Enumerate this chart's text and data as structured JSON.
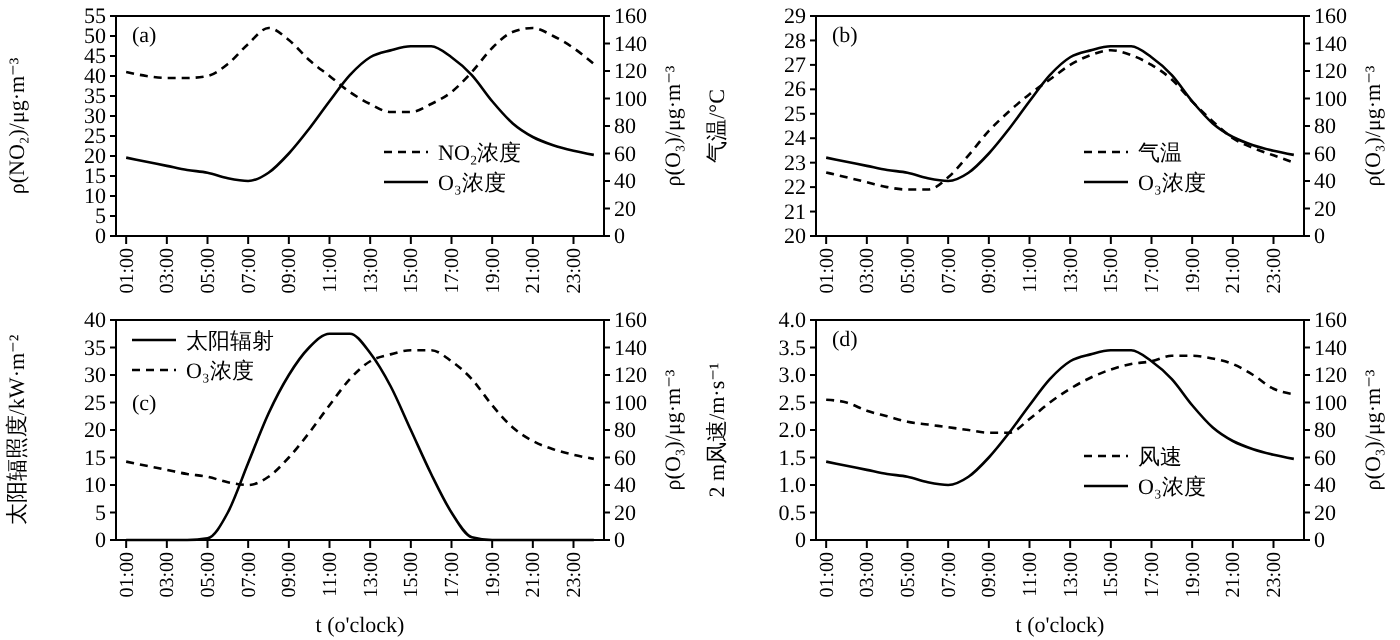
{
  "chart_data": [
    {
      "type": "line",
      "annotations": [
        "(a)"
      ],
      "ylabel": "ρ(NO₂)/μg·m⁻³",
      "y2label": "ρ(O₃)/μg·m⁻³",
      "legend": "bottom right",
      "grid": false,
      "marker": "none",
      "xlim": [
        0.5,
        24.5
      ],
      "xticks": [
        {
          "value": 1,
          "label": "01:00"
        },
        {
          "value": 3,
          "label": "03:00"
        },
        {
          "value": 5,
          "label": "05:00"
        },
        {
          "value": 7,
          "label": "07:00"
        },
        {
          "value": 9,
          "label": "09:00"
        },
        {
          "value": 11,
          "label": "11:00"
        },
        {
          "value": 13,
          "label": "13:00"
        },
        {
          "value": 15,
          "label": "15:00"
        },
        {
          "value": 17,
          "label": "17:00"
        },
        {
          "value": 19,
          "label": "19:00"
        },
        {
          "value": 21,
          "label": "21:00"
        },
        {
          "value": 23,
          "label": "23:00"
        }
      ],
      "ylim": [
        0,
        55
      ],
      "yticks": [
        0,
        5,
        10,
        15,
        20,
        25,
        30,
        35,
        40,
        45,
        50,
        55
      ],
      "y2lim": [
        0,
        160
      ],
      "y2ticks": [
        0,
        20,
        40,
        60,
        80,
        100,
        120,
        140,
        160
      ],
      "x": [
        1,
        2,
        3,
        4,
        5,
        6,
        7,
        8,
        9,
        10,
        11,
        12,
        13,
        14,
        15,
        16,
        17,
        18,
        19,
        20,
        21,
        22,
        23,
        24
      ],
      "series": [
        {
          "name": "NO₂浓度",
          "color": "#000000",
          "line_style": "dashed",
          "values": [
            41,
            40,
            39.5,
            39.5,
            40,
            43,
            48,
            52,
            49,
            44,
            40,
            36,
            33,
            31,
            31,
            33,
            36,
            41,
            47,
            51,
            52,
            50,
            47,
            43
          ]
        },
        {
          "name": "O₃浓度",
          "color": "#000000",
          "line_style": "solid",
          "axis": "y2",
          "values": [
            57,
            54,
            51,
            48,
            46,
            42,
            40,
            46,
            60,
            78,
            98,
            117,
            130,
            135,
            138,
            138,
            130,
            117,
            98,
            82,
            72,
            66,
            62,
            59
          ]
        }
      ]
    },
    {
      "type": "line",
      "annotations": [
        "(b)"
      ],
      "ylabel": "气温/°C",
      "y2label": "ρ(O₃)/μg·m⁻³",
      "legend": "bottom right",
      "grid": false,
      "marker": "none",
      "xlim": [
        0.5,
        24.5
      ],
      "xticks": [
        {
          "value": 1,
          "label": "01:00"
        },
        {
          "value": 3,
          "label": "03:00"
        },
        {
          "value": 5,
          "label": "05:00"
        },
        {
          "value": 7,
          "label": "07:00"
        },
        {
          "value": 9,
          "label": "09:00"
        },
        {
          "value": 11,
          "label": "11:00"
        },
        {
          "value": 13,
          "label": "13:00"
        },
        {
          "value": 15,
          "label": "15:00"
        },
        {
          "value": 17,
          "label": "17:00"
        },
        {
          "value": 19,
          "label": "19:00"
        },
        {
          "value": 21,
          "label": "21:00"
        },
        {
          "value": 23,
          "label": "23:00"
        }
      ],
      "ylim": [
        20,
        29
      ],
      "yticks": [
        20,
        21,
        22,
        23,
        24,
        25,
        26,
        27,
        28,
        29
      ],
      "y2lim": [
        0,
        160
      ],
      "y2ticks": [
        0,
        20,
        40,
        60,
        80,
        100,
        120,
        140,
        160
      ],
      "x": [
        1,
        2,
        3,
        4,
        5,
        6,
        7,
        8,
        9,
        10,
        11,
        12,
        13,
        14,
        15,
        16,
        17,
        18,
        19,
        20,
        21,
        22,
        23,
        24
      ],
      "series": [
        {
          "name": "气温",
          "color": "#000000",
          "line_style": "dashed",
          "values": [
            22.6,
            22.4,
            22.2,
            22,
            21.9,
            21.9,
            22.4,
            23.3,
            24.3,
            25.1,
            25.8,
            26.4,
            27,
            27.4,
            27.6,
            27.4,
            27,
            26.4,
            25.5,
            24.7,
            24,
            23.6,
            23.3,
            23
          ]
        },
        {
          "name": "O₃浓度",
          "color": "#000000",
          "line_style": "solid",
          "axis": "y2",
          "values": [
            57,
            54,
            51,
            48,
            46,
            42,
            40,
            46,
            60,
            78,
            98,
            117,
            130,
            135,
            138,
            138,
            130,
            117,
            98,
            82,
            72,
            66,
            62,
            59
          ]
        }
      ]
    },
    {
      "type": "line",
      "annotations": [
        "(c)"
      ],
      "xlabel": "t (o'clock)",
      "ylabel": "太阳辐照度/kW·m⁻²",
      "y2label": "ρ(O₃)/μg·m⁻³",
      "legend": "top left",
      "grid": false,
      "marker": "none",
      "xlim": [
        0.5,
        24.5
      ],
      "xticks": [
        {
          "value": 1,
          "label": "01:00"
        },
        {
          "value": 3,
          "label": "03:00"
        },
        {
          "value": 5,
          "label": "05:00"
        },
        {
          "value": 7,
          "label": "07:00"
        },
        {
          "value": 9,
          "label": "09:00"
        },
        {
          "value": 11,
          "label": "11:00"
        },
        {
          "value": 13,
          "label": "13:00"
        },
        {
          "value": 15,
          "label": "15:00"
        },
        {
          "value": 17,
          "label": "17:00"
        },
        {
          "value": 19,
          "label": "19:00"
        },
        {
          "value": 21,
          "label": "21:00"
        },
        {
          "value": 23,
          "label": "23:00"
        }
      ],
      "ylim": [
        0,
        40
      ],
      "yticks": [
        0,
        5,
        10,
        15,
        20,
        25,
        30,
        35,
        40
      ],
      "y2lim": [
        0,
        160
      ],
      "y2ticks": [
        0,
        20,
        40,
        60,
        80,
        100,
        120,
        140,
        160
      ],
      "x": [
        1,
        2,
        3,
        4,
        5,
        6,
        7,
        8,
        9,
        10,
        11,
        12,
        13,
        14,
        15,
        16,
        17,
        18,
        19,
        20,
        21,
        22,
        23,
        24
      ],
      "series": [
        {
          "name": "太阳辐射",
          "color": "#000000",
          "line_style": "solid",
          "values": [
            0,
            0,
            0,
            0,
            0.3,
            5,
            14,
            23,
            30,
            35,
            37.5,
            37.5,
            34,
            28,
            20,
            12,
            5,
            0.5,
            0,
            0,
            0,
            0,
            0,
            0
          ]
        },
        {
          "name": "O₃浓度",
          "color": "#000000",
          "line_style": "dashed",
          "axis": "y2",
          "values": [
            57,
            54,
            51,
            48,
            46,
            42,
            40,
            46,
            60,
            78,
            98,
            117,
            130,
            135,
            138,
            138,
            130,
            117,
            98,
            82,
            72,
            66,
            62,
            59
          ]
        }
      ]
    },
    {
      "type": "line",
      "annotations": [
        "(d)"
      ],
      "xlabel": "t (o'clock)",
      "ylabel": "2 m风速/m·s⁻¹",
      "y2label": "ρ(O₃)/μg·m⁻³",
      "legend": "bottom right",
      "grid": false,
      "marker": "none",
      "xlim": [
        0.5,
        24.5
      ],
      "xticks": [
        {
          "value": 1,
          "label": "01:00"
        },
        {
          "value": 3,
          "label": "03:00"
        },
        {
          "value": 5,
          "label": "05:00"
        },
        {
          "value": 7,
          "label": "07:00"
        },
        {
          "value": 9,
          "label": "09:00"
        },
        {
          "value": 11,
          "label": "11:00"
        },
        {
          "value": 13,
          "label": "13:00"
        },
        {
          "value": 15,
          "label": "15:00"
        },
        {
          "value": 17,
          "label": "17:00"
        },
        {
          "value": 19,
          "label": "19:00"
        },
        {
          "value": 21,
          "label": "21:00"
        },
        {
          "value": 23,
          "label": "23:00"
        }
      ],
      "ylim": [
        0,
        4
      ],
      "yticks": [
        0,
        0.5,
        {
          "value": 1,
          "label": "1.0"
        },
        1.5,
        {
          "value": 2,
          "label": "2.0"
        },
        2.5,
        {
          "value": 3,
          "label": "3.0"
        },
        3.5,
        {
          "value": 4,
          "label": "4.0"
        }
      ],
      "y2lim": [
        0,
        160
      ],
      "y2ticks": [
        0,
        20,
        40,
        60,
        80,
        100,
        120,
        140,
        160
      ],
      "x": [
        1,
        2,
        3,
        4,
        5,
        6,
        7,
        8,
        9,
        10,
        11,
        12,
        13,
        14,
        15,
        16,
        17,
        18,
        19,
        20,
        21,
        22,
        23,
        24
      ],
      "series": [
        {
          "name": "风速",
          "color": "#000000",
          "line_style": "dashed",
          "values": [
            2.55,
            2.5,
            2.35,
            2.25,
            2.15,
            2.1,
            2.05,
            2,
            1.95,
            1.95,
            2.2,
            2.5,
            2.75,
            2.95,
            3.1,
            3.2,
            3.25,
            3.35,
            3.35,
            3.3,
            3.2,
            3,
            2.75,
            2.65
          ]
        },
        {
          "name": "O₃浓度",
          "color": "#000000",
          "line_style": "solid",
          "axis": "y2",
          "values": [
            57,
            54,
            51,
            48,
            46,
            42,
            40,
            46,
            60,
            78,
            98,
            117,
            130,
            135,
            138,
            138,
            130,
            117,
            98,
            82,
            72,
            66,
            62,
            59
          ]
        }
      ]
    }
  ]
}
